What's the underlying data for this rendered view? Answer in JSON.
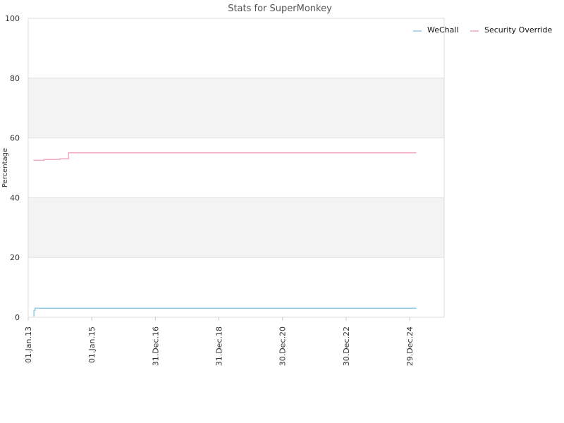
{
  "chart_data": {
    "type": "line",
    "title": "Stats for SuperMonkey",
    "xlabel": "",
    "ylabel": "Percentage",
    "ylim": [
      0,
      100
    ],
    "yticks": [
      0,
      20,
      40,
      60,
      80,
      100
    ],
    "xlim": [
      "2013-01-01",
      "2026-01-29"
    ],
    "xticks": [
      {
        "date": "2013-01-01",
        "label": "01.Jan.13"
      },
      {
        "date": "2015-01-01",
        "label": "01.Jan.15"
      },
      {
        "date": "2016-12-31",
        "label": "31.Dec.16"
      },
      {
        "date": "2018-12-31",
        "label": "31.Dec.18"
      },
      {
        "date": "2020-12-30",
        "label": "30.Dec.20"
      },
      {
        "date": "2022-12-30",
        "label": "30.Dec.22"
      },
      {
        "date": "2024-12-29",
        "label": "29.Dec.24"
      }
    ],
    "grid": true,
    "legend_position": "top-right",
    "series": [
      {
        "name": "WeChall",
        "color": "#8ccbe9",
        "step": true,
        "points": [
          {
            "x": "2013-03-01",
            "y": 0.5
          },
          {
            "x": "2013-03-08",
            "y": 2.3
          },
          {
            "x": "2013-03-20",
            "y": 3.0
          },
          {
            "x": "2025-03-15",
            "y": 3.0
          }
        ]
      },
      {
        "name": "Security Override",
        "color": "#f2a8c6",
        "step": true,
        "points": [
          {
            "x": "2013-03-01",
            "y": 52.5
          },
          {
            "x": "2013-07-01",
            "y": 52.8
          },
          {
            "x": "2014-01-01",
            "y": 53.0
          },
          {
            "x": "2014-04-10",
            "y": 55.0
          },
          {
            "x": "2025-03-15",
            "y": 55.0
          }
        ]
      }
    ]
  }
}
